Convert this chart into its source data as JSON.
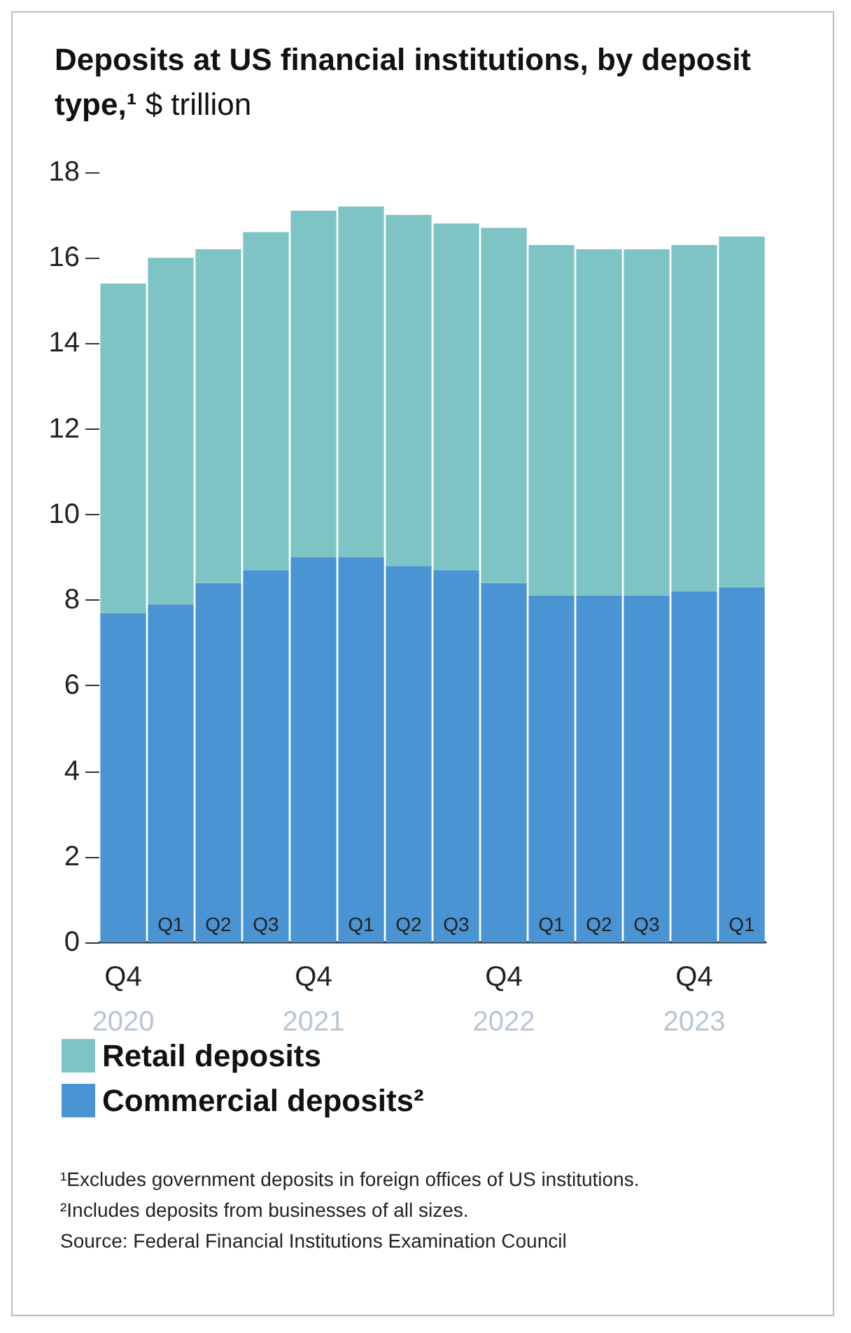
{
  "chart_data": {
    "type": "bar",
    "title": "Deposits at US financial institutions, by deposit type,¹",
    "subtitle": "$ trillion",
    "stacked": true,
    "categories": [
      "Q4\n2020",
      "Q1",
      "Q2",
      "Q3",
      "Q4\n2021",
      "Q1",
      "Q2",
      "Q3",
      "Q4\n2022",
      "Q1",
      "Q2",
      "Q3",
      "Q4\n2023",
      "Q1"
    ],
    "series": [
      {
        "name": "Commercial deposits²",
        "color": "#4a94d3",
        "values": [
          7.7,
          7.9,
          8.4,
          8.7,
          9.0,
          9.0,
          8.8,
          8.7,
          8.4,
          8.1,
          8.1,
          8.1,
          8.2,
          8.3
        ]
      },
      {
        "name": "Retail deposits",
        "color": "#7fc4c4",
        "values": [
          7.7,
          8.1,
          7.8,
          7.9,
          8.1,
          8.2,
          8.2,
          8.1,
          8.3,
          8.2,
          8.1,
          8.1,
          8.1,
          8.2
        ]
      }
    ],
    "ylim": [
      0,
      18
    ],
    "yticks": [
      0,
      2,
      4,
      6,
      8,
      10,
      12,
      14,
      16,
      18
    ],
    "grid": false,
    "legend": "bottom",
    "annotations": [
      "¹Excludes government deposits in foreign offices of US institutions.",
      "²Includes deposits from businesses of all sizes.",
      "Source: Federal Financial Institutions Examination Council"
    ]
  }
}
